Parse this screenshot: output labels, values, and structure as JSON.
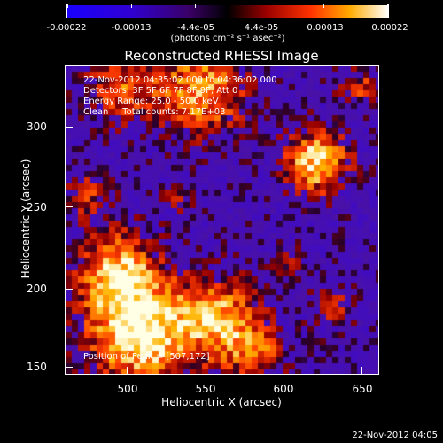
{
  "colorbar": {
    "tick_labels": [
      "-0.00022",
      "-0.00013",
      "-4.4e-05",
      "4.4e-05",
      "0.00013",
      "0.00022"
    ],
    "units": "(photons cm⁻² s⁻¹ asec⁻²)"
  },
  "title": "Reconstructed RHESSI Image",
  "info": {
    "line1": "22-Nov-2012 04:35:02.000 to 04:36:02.000",
    "line2": "Detectors: 3F 5F 6F 7F 8F 9F, Att 0",
    "line3": "Energy Range: 25.0 - 50.0 keV",
    "line4": "Clean     Total counts: 7.17E+03"
  },
  "peak": "Position of Peak = [507,172]",
  "x_axis": {
    "title": "Heliocentric X (arcsec)",
    "ticks": [
      "500",
      "550",
      "600",
      "650"
    ],
    "range": [
      465,
      650
    ]
  },
  "y_axis": {
    "title": "Heliocentric Y (arcsec)",
    "ticks": [
      "150",
      "200",
      "250",
      "300"
    ],
    "range": [
      143,
      325
    ]
  },
  "datestamp": "22-Nov-2012 04:05",
  "colors": {
    "background": "#000000",
    "axis": "#ffffff"
  }
}
